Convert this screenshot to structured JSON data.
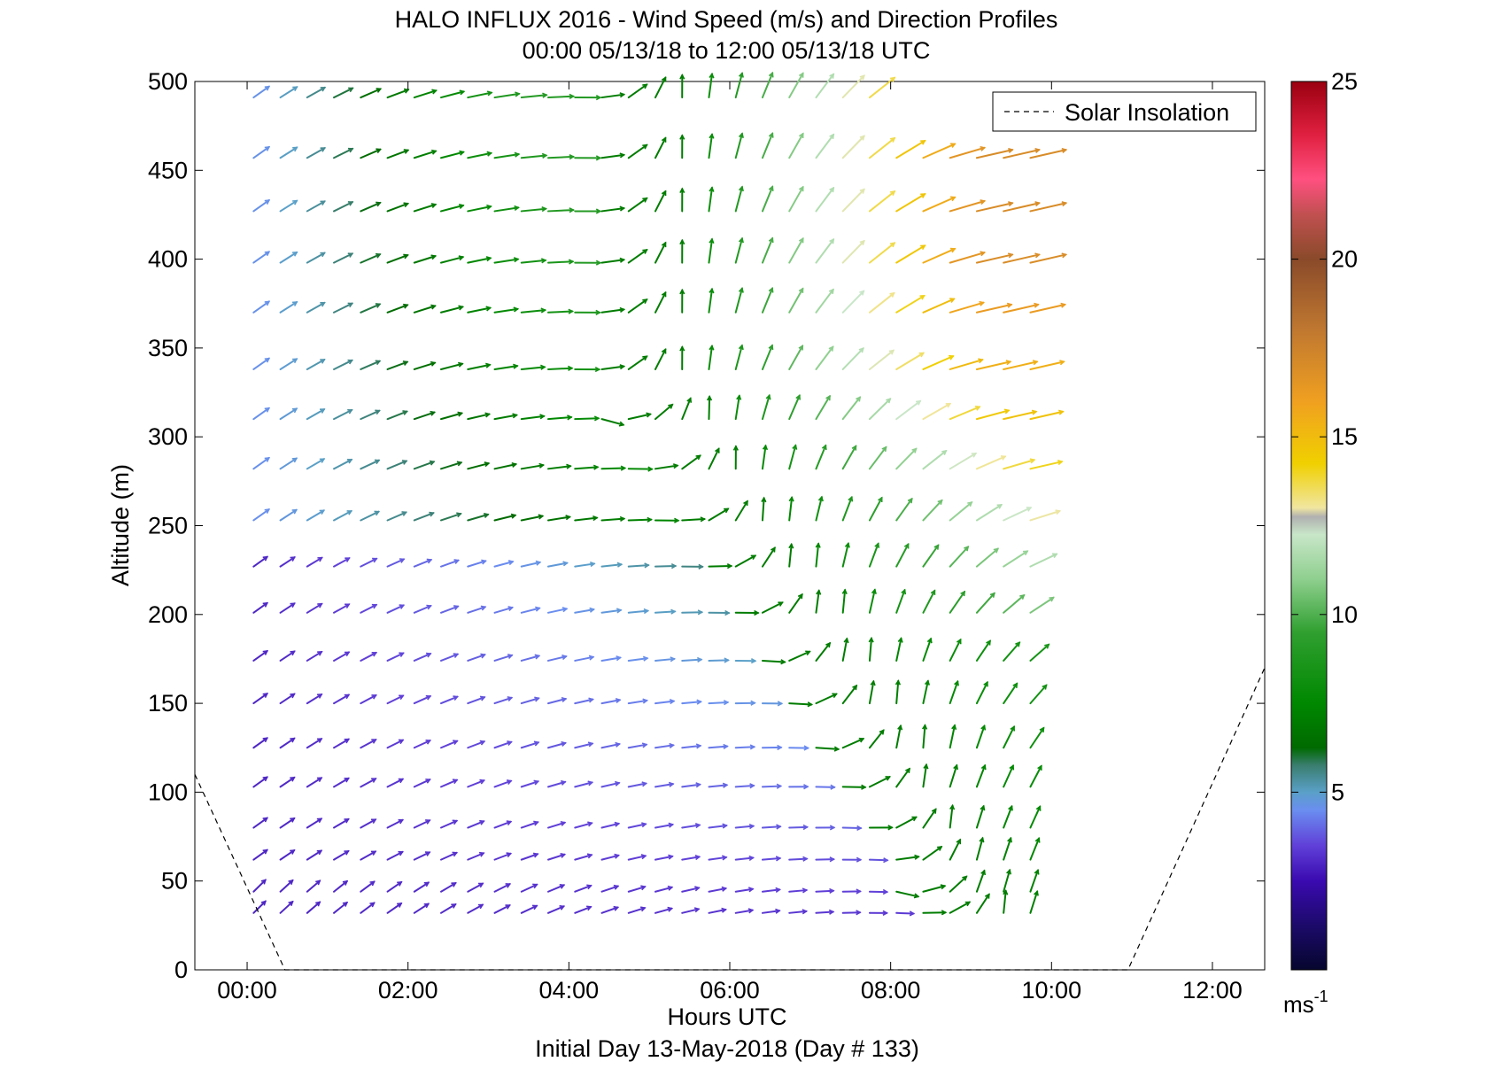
{
  "chart_data": {
    "type": "quiver",
    "title": "HALO INFLUX 2016 - Wind Speed (m/s) and Direction Profiles",
    "subtitle": "00:00 05/13/18 to 12:00 05/13/18  UTC",
    "xlabel": "Hours UTC",
    "xlabel2": "Initial Day 13-May-2018 (Day # 133)",
    "ylabel": "Altitude (m)",
    "xlim": [
      -0.65,
      12.65
    ],
    "ylim": [
      0,
      500
    ],
    "x_ticks": [
      0,
      2,
      4,
      6,
      8,
      10,
      12
    ],
    "x_tick_labels": [
      "00:00",
      "02:00",
      "04:00",
      "06:00",
      "08:00",
      "10:00",
      "12:00"
    ],
    "y_ticks": [
      0,
      50,
      100,
      150,
      200,
      250,
      300,
      350,
      400,
      450,
      500
    ],
    "y_tick_labels": [
      "0",
      "50",
      "100",
      "150",
      "200",
      "250",
      "300",
      "350",
      "400",
      "450",
      "500"
    ],
    "legend": {
      "entries": [
        "Solar Insolation"
      ],
      "position": "top-right"
    },
    "colorbar": {
      "label": "ms",
      "label_exp": "-1",
      "range": [
        0,
        25
      ],
      "ticks": [
        5,
        10,
        15,
        20,
        25
      ],
      "tick_labels": [
        "5",
        "10",
        "15",
        "20",
        "25"
      ]
    },
    "solar_insolation": [
      {
        "hour": -0.65,
        "altitude": 110
      },
      {
        "hour": 0.47,
        "altitude": 0
      },
      {
        "hour": 10.95,
        "altitude": 0
      },
      {
        "hour": 12.65,
        "altitude": 170
      }
    ],
    "wind_profile": {
      "times_hours": {
        "start": 0.08,
        "step": 0.333,
        "count": 30
      },
      "altitudes_m": [
        32,
        44,
        62,
        80,
        103,
        125,
        150,
        174,
        201,
        227,
        253,
        282,
        310,
        338,
        370,
        398,
        427,
        457,
        491
      ],
      "max_altitude_before_hour": [
        {
          "hour": 8.0,
          "altitude": 491
        },
        {
          "hour": 12.0,
          "altitude": 457
        }
      ],
      "speed_m_s_approx": {
        "night_low_levels": 3,
        "transition_northerly": 7,
        "afternoon_westerly": 11,
        "upper_late": 17
      }
    }
  }
}
